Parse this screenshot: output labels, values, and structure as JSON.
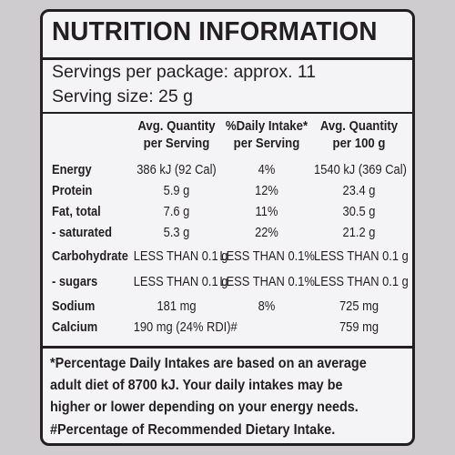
{
  "title": "NUTRITION INFORMATION",
  "servings_per_package": "Servings per package: approx. 11",
  "serving_size": "Serving size: 25 g",
  "columns": {
    "avg_serving_line1": "Avg. Quantity",
    "avg_serving_line2": "per Serving",
    "daily_intake_line1": "%Daily Intake*",
    "daily_intake_line2": "per Serving",
    "avg_100g_line1": "Avg. Quantity",
    "avg_100g_line2": "per 100 g"
  },
  "rows": [
    {
      "label": "Energy",
      "per_serving": "386 kJ (92 Cal)",
      "daily_intake": "4%",
      "per_100g": "1540 kJ (369 Cal)"
    },
    {
      "label": "Protein",
      "per_serving": "5.9 g",
      "daily_intake": "12%",
      "per_100g": "23.4 g"
    },
    {
      "label": "Fat, total",
      "per_serving": "7.6 g",
      "daily_intake": "11%",
      "per_100g": "30.5 g"
    },
    {
      "label": "- saturated",
      "per_serving": "5.3 g",
      "daily_intake": "22%",
      "per_100g": "21.2 g"
    },
    {
      "label": "Carbohydrate",
      "per_serving": "LESS THAN 0.1 g",
      "daily_intake": "LESS THAN 0.1%",
      "per_100g": "LESS THAN 0.1 g"
    },
    {
      "label": "- sugars",
      "per_serving": "LESS THAN 0.1 g",
      "daily_intake": "LESS THAN 0.1%",
      "per_100g": "LESS THAN 0.1 g"
    },
    {
      "label": "Sodium",
      "per_serving": "181 mg",
      "daily_intake": "8%",
      "per_100g": "725 mg"
    },
    {
      "label": "Calcium",
      "per_serving": "190 mg (24% RDI)#",
      "daily_intake": "",
      "per_100g": "759 mg"
    }
  ],
  "footnotes": {
    "line1": "*Percentage Daily Intakes are based on an average",
    "line2": "adult diet of 8700 kJ. Your daily intakes may be",
    "line3": "higher or lower depending on your energy needs.",
    "line4": "#Percentage of Recommended Dietary Intake."
  }
}
